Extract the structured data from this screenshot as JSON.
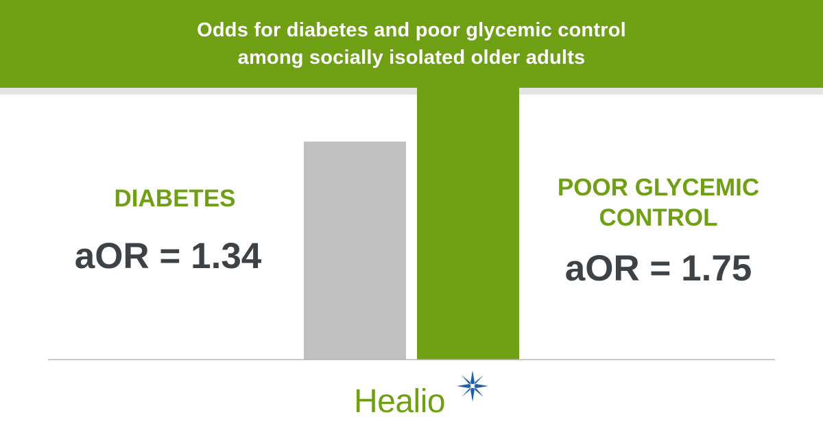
{
  "header": {
    "title_line1": "Odds for diabetes and poor glycemic control",
    "title_line2": "among socially isolated older adults"
  },
  "left_metric": {
    "label": "DIABETES",
    "value": "aOR = 1.34"
  },
  "right_metric": {
    "label_line1": "POOR GLYCEMIC",
    "label_line2": "CONTROL",
    "value": "aOR = 1.75"
  },
  "chart_data": {
    "type": "bar",
    "title": "Odds for diabetes and poor glycemic control among socially isolated older adults",
    "categories": [
      "DIABETES",
      "POOR GLYCEMIC CONTROL"
    ],
    "values": [
      1.34,
      1.75
    ],
    "colors": [
      "#c0c0c0",
      "#6fa014"
    ],
    "ylim": [
      0,
      2.0
    ],
    "grid": false,
    "legend": "none"
  },
  "colors": {
    "accent": "#6fa014",
    "text_dark": "#3d4247",
    "bar_gray": "#c0c0c0",
    "logo_star": "#1f5fa8"
  },
  "logo": {
    "text": "Healio",
    "icon": "star-icon"
  }
}
